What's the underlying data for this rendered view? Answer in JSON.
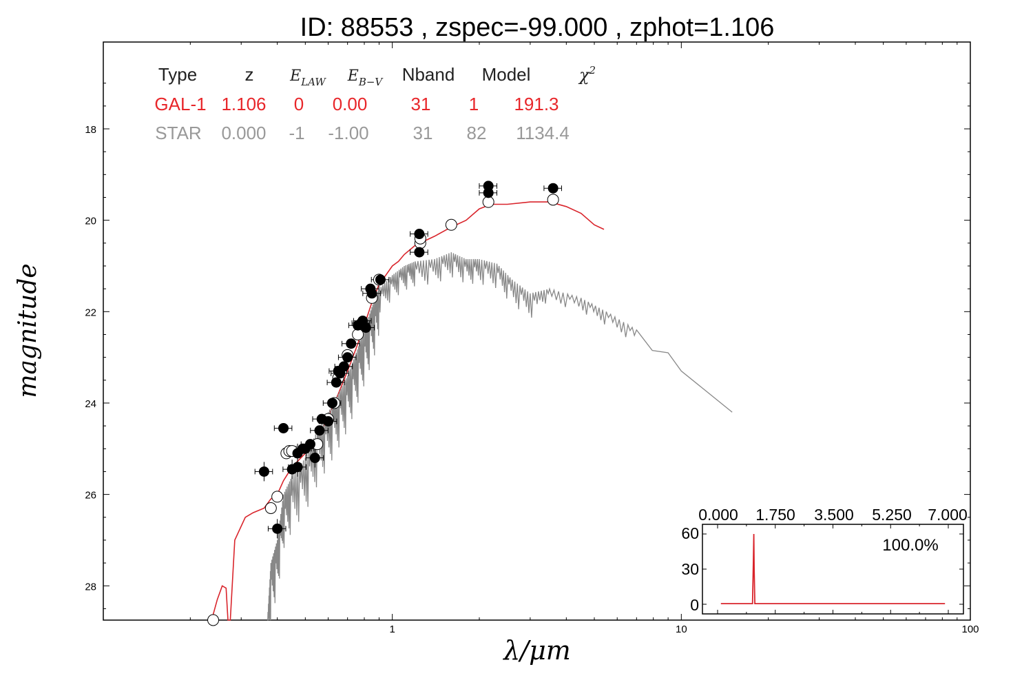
{
  "chart_data": [
    {
      "type": "scatter",
      "title": "ID:  88553 , zspec=-99.000 , zphot=1.106",
      "xlabel": "λ/μm",
      "ylabel": "magnitude",
      "xscale": "log",
      "xlim": [
        0.1,
        100
      ],
      "ylim": [
        28.75,
        16.1
      ],
      "x_ticks": [
        1,
        10,
        100
      ],
      "y_ticks": [
        18,
        20,
        22,
        24,
        26,
        28
      ],
      "grid": false,
      "legend_table": {
        "headers": [
          "Type",
          "z",
          "E_LAW",
          "E_B−V",
          "Nband",
          "Model",
          "χ²"
        ],
        "rows": [
          {
            "name": "GAL-1",
            "values": [
              "GAL-1",
              "1.106",
              "0",
              "0.00",
              "31",
              "1",
              "191.3"
            ],
            "color": "#e8262a"
          },
          {
            "name": "STAR",
            "values": [
              "STAR",
              "0.000",
              "-1",
              "-1.00",
              "31",
              "82",
              "1134.4"
            ],
            "color": "#999999"
          }
        ]
      },
      "series": [
        {
          "name": "GAL-1",
          "kind": "line",
          "color": "#d9242b",
          "points": [
            [
              0.237,
              28.75
            ],
            [
              0.248,
              28.3
            ],
            [
              0.258,
              28.0
            ],
            [
              0.266,
              28.05
            ],
            [
              0.27,
              28.75
            ],
            [
              0.275,
              28.75
            ],
            [
              0.285,
              27.0
            ],
            [
              0.31,
              26.5
            ],
            [
              0.33,
              26.4
            ],
            [
              0.36,
              26.3
            ],
            [
              0.38,
              26.1
            ],
            [
              0.4,
              26.0
            ],
            [
              0.42,
              25.7
            ],
            [
              0.45,
              25.4
            ],
            [
              0.5,
              25.1
            ],
            [
              0.55,
              24.8
            ],
            [
              0.6,
              24.3
            ],
            [
              0.65,
              23.8
            ],
            [
              0.7,
              23.3
            ],
            [
              0.75,
              22.8
            ],
            [
              0.8,
              22.3
            ],
            [
              0.85,
              21.8
            ],
            [
              0.9,
              21.4
            ],
            [
              0.95,
              21.2
            ],
            [
              1.0,
              21.0
            ],
            [
              1.05,
              20.9
            ],
            [
              1.1,
              20.75
            ],
            [
              1.2,
              20.55
            ],
            [
              1.4,
              20.35
            ],
            [
              1.6,
              20.15
            ],
            [
              1.8,
              20.0
            ],
            [
              2.0,
              19.75
            ],
            [
              2.2,
              19.65
            ],
            [
              2.5,
              19.65
            ],
            [
              3.0,
              19.6
            ],
            [
              3.5,
              19.6
            ],
            [
              4.0,
              19.7
            ],
            [
              4.5,
              19.85
            ],
            [
              5.0,
              20.1
            ],
            [
              5.4,
              20.2
            ]
          ]
        },
        {
          "name": "STAR",
          "kind": "line",
          "color": "#888888",
          "points": [
            [
              0.37,
              28.75
            ],
            [
              0.38,
              27.5
            ],
            [
              0.4,
              27.0
            ],
            [
              0.42,
              26.0
            ],
            [
              0.45,
              25.6
            ],
            [
              0.5,
              25.2
            ],
            [
              0.55,
              24.6
            ],
            [
              0.6,
              24.2
            ],
            [
              0.65,
              23.8
            ],
            [
              0.7,
              23.4
            ],
            [
              0.75,
              22.9
            ],
            [
              0.8,
              22.4
            ],
            [
              0.85,
              21.9
            ],
            [
              0.9,
              21.5
            ],
            [
              1.0,
              21.2
            ],
            [
              1.1,
              21.0
            ],
            [
              1.2,
              20.9
            ],
            [
              1.4,
              20.85
            ],
            [
              1.6,
              20.7
            ],
            [
              1.8,
              20.85
            ],
            [
              2.0,
              20.85
            ],
            [
              2.3,
              20.95
            ],
            [
              2.6,
              21.3
            ],
            [
              3.0,
              21.6
            ],
            [
              3.5,
              21.5
            ],
            [
              4.5,
              21.7
            ],
            [
              5.5,
              22.0
            ],
            [
              7.0,
              22.4
            ],
            [
              9.0,
              22.9
            ],
            [
              10.0,
              23.3
            ],
            [
              15.0,
              24.2
            ]
          ]
        },
        {
          "name": "observed",
          "kind": "filled_markers",
          "color": "#000000",
          "points": [
            [
              0.36,
              25.5
            ],
            [
              0.4,
              26.75
            ],
            [
              0.42,
              24.55
            ],
            [
              0.45,
              25.45
            ],
            [
              0.47,
              25.4
            ],
            [
              0.47,
              25.1
            ],
            [
              0.49,
              25.0
            ],
            [
              0.5,
              25.0
            ],
            [
              0.52,
              24.9
            ],
            [
              0.54,
              25.2
            ],
            [
              0.56,
              24.6
            ],
            [
              0.57,
              24.35
            ],
            [
              0.6,
              24.4
            ],
            [
              0.62,
              24.0
            ],
            [
              0.64,
              23.55
            ],
            [
              0.65,
              23.3
            ],
            [
              0.66,
              23.35
            ],
            [
              0.68,
              23.2
            ],
            [
              0.7,
              23.0
            ],
            [
              0.72,
              22.7
            ],
            [
              0.76,
              22.3
            ],
            [
              0.78,
              22.25
            ],
            [
              0.79,
              22.2
            ],
            [
              0.81,
              22.35
            ],
            [
              0.84,
              21.5
            ],
            [
              0.85,
              21.6
            ],
            [
              0.91,
              21.3
            ],
            [
              1.24,
              20.3
            ],
            [
              1.24,
              20.7
            ],
            [
              2.15,
              19.25
            ],
            [
              2.15,
              19.4
            ],
            [
              3.6,
              19.3
            ]
          ]
        },
        {
          "name": "model",
          "kind": "open_markers",
          "color": "#ffffff",
          "points": [
            [
              0.24,
              28.75
            ],
            [
              0.38,
              26.3
            ],
            [
              0.4,
              26.05
            ],
            [
              0.43,
              25.1
            ],
            [
              0.44,
              25.05
            ],
            [
              0.45,
              25.05
            ],
            [
              0.55,
              24.9
            ],
            [
              0.6,
              24.35
            ],
            [
              0.63,
              24.0
            ],
            [
              0.65,
              23.45
            ],
            [
              0.7,
              22.95
            ],
            [
              0.76,
              22.5
            ],
            [
              0.85,
              21.7
            ],
            [
              0.9,
              21.3
            ],
            [
              1.25,
              20.5
            ],
            [
              1.25,
              20.4
            ],
            [
              1.6,
              20.1
            ],
            [
              2.15,
              19.6
            ],
            [
              3.6,
              19.55
            ]
          ]
        }
      ]
    },
    {
      "type": "line",
      "title": "",
      "xlabel": "",
      "ylabel": "",
      "xlim": [
        0.0,
        7.0
      ],
      "ylim": [
        -8,
        68
      ],
      "x_ticks": [
        "0.000",
        "1.750",
        "3.500",
        "5.250",
        "7.000"
      ],
      "y_ticks": [
        "0",
        "30",
        "60"
      ],
      "annotation": "100.0%",
      "series": [
        {
          "name": "",
          "color": "#d9242b",
          "points": [
            [
              0.1,
              0.5
            ],
            [
              1.06,
              0.5
            ],
            [
              1.085,
              35
            ],
            [
              1.1,
              60
            ],
            [
              1.11,
              30
            ],
            [
              1.13,
              0.5
            ],
            [
              6.9,
              0.5
            ]
          ]
        }
      ]
    }
  ]
}
